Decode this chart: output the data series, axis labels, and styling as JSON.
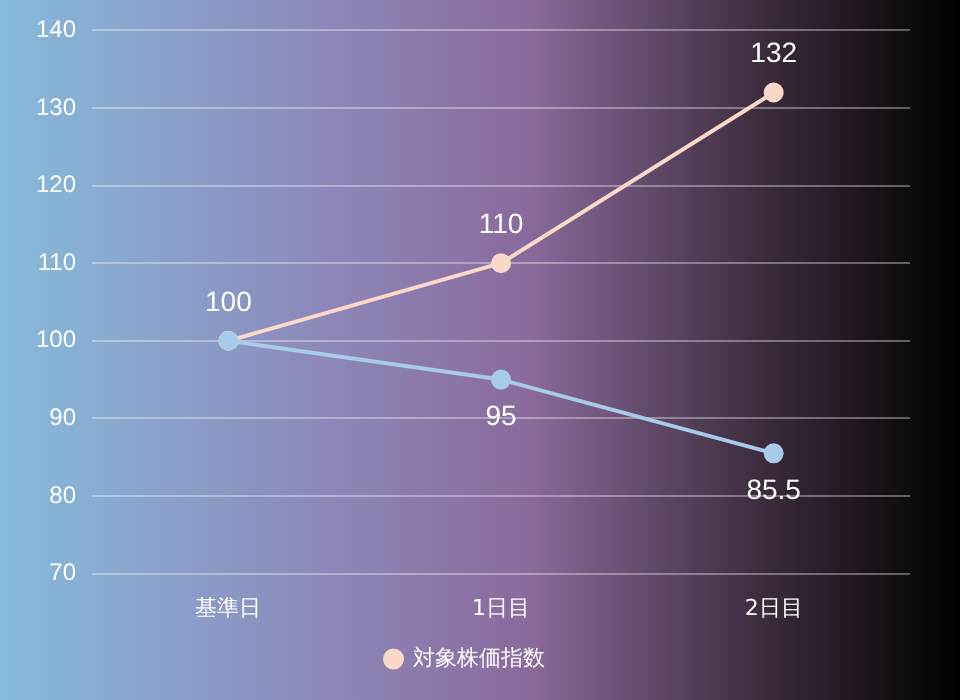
{
  "chart_data": {
    "type": "line",
    "categories": [
      "基準日",
      "1日目",
      "2日目"
    ],
    "series": [
      {
        "color": "#a8cbea",
        "values": [
          100,
          95,
          85.5
        ],
        "value_labels": [
          null,
          "95",
          "85.5"
        ]
      },
      {
        "name": "対象株価指数",
        "color": "#fad9c9",
        "values": [
          100,
          110,
          132
        ],
        "value_labels": [
          "100",
          "110",
          "132"
        ]
      }
    ],
    "ylim": [
      70,
      140
    ],
    "yticks": [
      70,
      80,
      90,
      100,
      110,
      120,
      130,
      140
    ],
    "grid": "y",
    "legend": "bottom",
    "marker": "circle",
    "line_style": "solid"
  }
}
